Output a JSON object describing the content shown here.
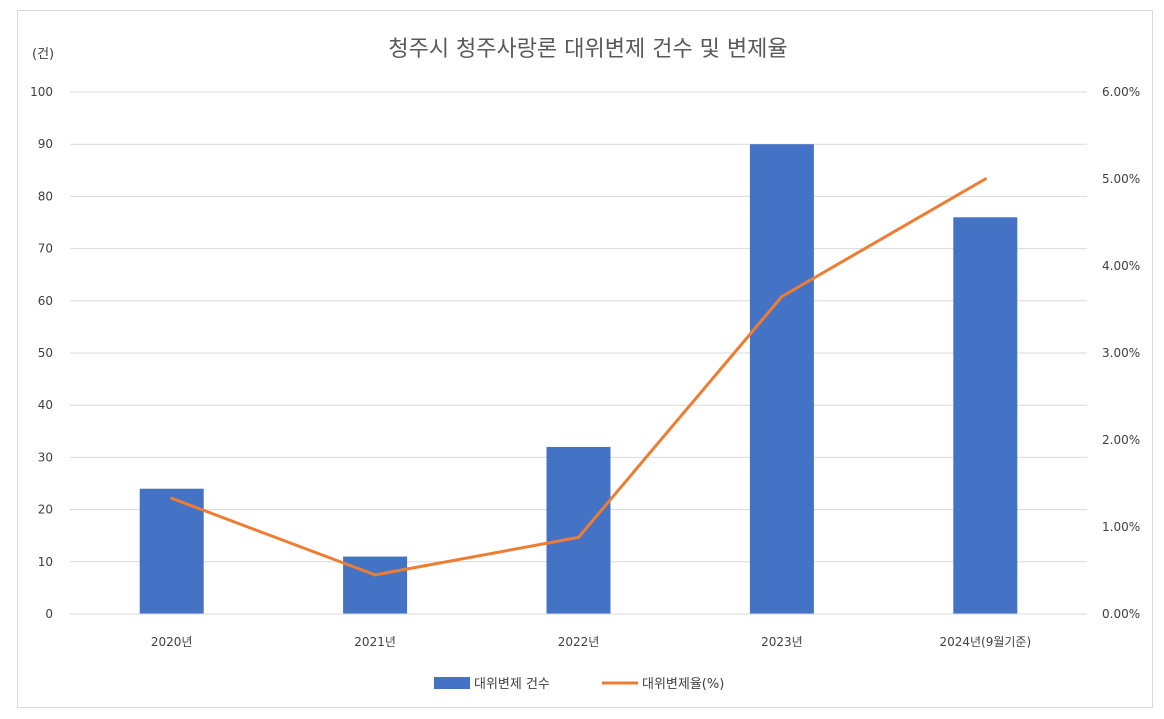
{
  "chart_data": {
    "type": "bar",
    "title": "청주시 청주사랑론 대위변제 건수 및 변제율",
    "y_unit": "(건)",
    "categories": [
      "2020년",
      "2021년",
      "2022년",
      "2023년",
      "2024년(9월기준)"
    ],
    "series": [
      {
        "name": "대위변제 건수",
        "type": "bar",
        "axis": "left",
        "color": "#4472C4",
        "values": [
          24,
          11,
          32,
          90,
          76
        ]
      },
      {
        "name": "대위변제율(%)",
        "type": "line",
        "axis": "right",
        "color": "#ED7D31",
        "values": [
          1.33,
          0.45,
          0.88,
          3.65,
          5.0
        ]
      }
    ],
    "ylim_left": [
      0,
      100
    ],
    "yticks_left": [
      "0",
      "10",
      "20",
      "30",
      "40",
      "50",
      "60",
      "70",
      "80",
      "90",
      "100"
    ],
    "ylim_right": [
      0,
      6
    ],
    "yticks_right": [
      "0.00%",
      "1.00%",
      "2.00%",
      "3.00%",
      "4.00%",
      "5.00%",
      "6.00%"
    ],
    "grid": true,
    "legend_position": "bottom"
  }
}
